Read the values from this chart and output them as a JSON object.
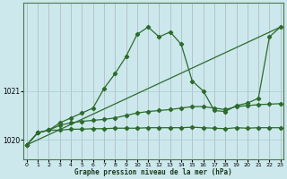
{
  "title": "Graphe pression niveau de la mer (hPa)",
  "bg_color": "#cce8ec",
  "grid_color": "#aaccd4",
  "line_color": "#2d6b2d",
  "x_ticks": [
    0,
    1,
    2,
    3,
    4,
    5,
    6,
    7,
    8,
    9,
    10,
    11,
    12,
    13,
    14,
    15,
    16,
    17,
    18,
    19,
    20,
    21,
    22,
    23
  ],
  "y_ticks": [
    1020,
    1021
  ],
  "ylim": [
    1019.6,
    1022.8
  ],
  "xlim": [
    -0.3,
    23.3
  ],
  "flat_line": {
    "x": [
      0,
      1,
      2,
      3,
      4,
      5,
      6,
      7,
      8,
      9,
      10,
      11,
      12,
      13,
      14,
      15,
      16,
      17,
      18,
      19,
      20,
      21,
      22,
      23
    ],
    "y": [
      1019.9,
      1020.15,
      1020.2,
      1020.2,
      1020.22,
      1020.22,
      1020.23,
      1020.23,
      1020.24,
      1020.24,
      1020.24,
      1020.25,
      1020.25,
      1020.25,
      1020.25,
      1020.26,
      1020.25,
      1020.24,
      1020.23,
      1020.25,
      1020.24,
      1020.25,
      1020.25,
      1020.25
    ]
  },
  "mid_line": {
    "x": [
      0,
      1,
      2,
      3,
      4,
      5,
      6,
      7,
      8,
      9,
      10,
      11,
      12,
      13,
      14,
      15,
      16,
      17,
      18,
      19,
      20,
      21,
      22,
      23
    ],
    "y": [
      1019.9,
      1020.15,
      1020.2,
      1020.3,
      1020.35,
      1020.38,
      1020.4,
      1020.42,
      1020.45,
      1020.5,
      1020.55,
      1020.58,
      1020.6,
      1020.62,
      1020.65,
      1020.68,
      1020.68,
      1020.65,
      1020.62,
      1020.68,
      1020.7,
      1020.72,
      1020.73,
      1020.74
    ]
  },
  "main_curve": {
    "x": [
      0,
      1,
      2,
      3,
      4,
      5,
      6,
      7,
      8,
      9,
      10,
      11,
      12,
      13,
      14,
      15,
      16,
      17,
      18,
      19,
      20,
      21,
      22,
      23
    ],
    "y": [
      1019.9,
      1020.15,
      1020.2,
      1020.35,
      1020.45,
      1020.55,
      1020.65,
      1021.05,
      1021.35,
      1021.7,
      1022.15,
      1022.3,
      1022.1,
      1022.2,
      1021.95,
      1021.2,
      1021.0,
      1020.6,
      1020.58,
      1020.7,
      1020.75,
      1020.85,
      1022.1,
      1022.3
    ]
  },
  "diag_line": {
    "x": [
      0,
      23
    ],
    "y": [
      1019.9,
      1022.3
    ]
  }
}
